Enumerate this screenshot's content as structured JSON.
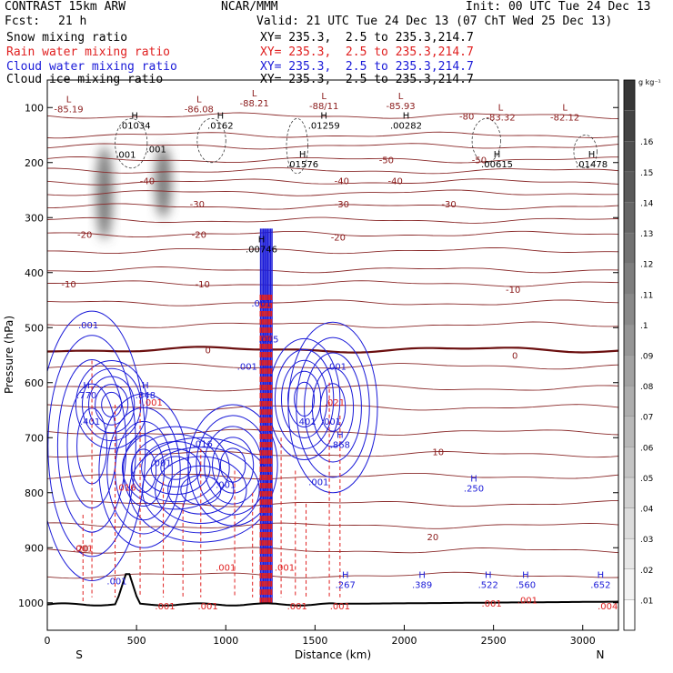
{
  "header": {
    "model": "CONTRAST 15km ARW",
    "org": "NCAR/MMM",
    "init": "Init: 00 UTC Tue 24 Dec 13",
    "fcst_label": "Fcst:",
    "fcst_value": "21 h",
    "valid": "Valid: 21 UTC Tue 24 Dec 13 (07 ChT Wed 25 Dec 13)"
  },
  "fields": [
    {
      "name": "Snow mixing ratio",
      "xy": "XY= 235.3,  2.5 to 235.3,214.7",
      "color": "#000000"
    },
    {
      "name": "Rain water mixing ratio",
      "xy": "XY= 235.3,  2.5 to 235.3,214.7",
      "color": "#e02020"
    },
    {
      "name": "Cloud water mixing ratio",
      "xy": "XY= 235.3,  2.5 to 235.3,214.7",
      "color": "#1a1ad8"
    },
    {
      "name": "Cloud ice mixing ratio",
      "xy": "XY= 235.3,  2.5 to 235.3,214.7",
      "color": "#000000"
    }
  ],
  "chart_data": {
    "type": "heatmap",
    "xlabel": "Distance (km)",
    "ylabel": "Pressure (hPa)",
    "xlim": [
      0,
      3200
    ],
    "ylim": [
      1050,
      50
    ],
    "x_ticks": [
      0,
      500,
      1000,
      1500,
      2000,
      2500,
      3000
    ],
    "y_ticks": [
      100,
      200,
      300,
      400,
      500,
      600,
      700,
      800,
      900,
      1000
    ],
    "endpoints": {
      "start": "S",
      "end": "N"
    },
    "colorbar": {
      "unit": "g kg⁻¹",
      "ticks": [
        ".01",
        ".02",
        ".03",
        ".04",
        ".05",
        ".06",
        ".07",
        ".08",
        ".09",
        ".1",
        ".11",
        ".12",
        ".13",
        ".14",
        ".15",
        ".16"
      ],
      "values": [
        0.01,
        0.02,
        0.03,
        0.04,
        0.05,
        0.06,
        0.07,
        0.08,
        0.09,
        0.1,
        0.11,
        0.12,
        0.13,
        0.14,
        0.15,
        0.16
      ]
    },
    "temperature_labels": [
      {
        "text": "-80",
        "x": 2350,
        "p": 115
      },
      {
        "text": "-50",
        "x": 1900,
        "p": 195
      },
      {
        "text": "-50",
        "x": 2420,
        "p": 195
      },
      {
        "text": "-40",
        "x": 560,
        "p": 233
      },
      {
        "text": "-40",
        "x": 1650,
        "p": 233
      },
      {
        "text": "-40",
        "x": 1950,
        "p": 233
      },
      {
        "text": "-30",
        "x": 840,
        "p": 275
      },
      {
        "text": "-30",
        "x": 1650,
        "p": 275
      },
      {
        "text": "-30",
        "x": 2250,
        "p": 275
      },
      {
        "text": "-20",
        "x": 210,
        "p": 330
      },
      {
        "text": "-20",
        "x": 850,
        "p": 330
      },
      {
        "text": "-20",
        "x": 1630,
        "p": 335
      },
      {
        "text": "-10",
        "x": 120,
        "p": 420
      },
      {
        "text": "-10",
        "x": 870,
        "p": 420
      },
      {
        "text": "-10",
        "x": 2610,
        "p": 430
      },
      {
        "text": "0",
        "x": 900,
        "p": 540
      },
      {
        "text": "0",
        "x": 2620,
        "p": 550
      },
      {
        "text": "10",
        "x": 2190,
        "p": 725
      },
      {
        "text": "20",
        "x": 200,
        "p": 900
      },
      {
        "text": "20",
        "x": 2160,
        "p": 880
      }
    ],
    "extrema": [
      {
        "type": "L",
        "value": "-85.19",
        "x": 120,
        "p": 100
      },
      {
        "type": "H",
        "value": ".01034",
        "x": 490,
        "p": 130
      },
      {
        "type": "L",
        "value": "-86.08",
        "x": 850,
        "p": 100
      },
      {
        "type": "L",
        "value": "-88.21",
        "x": 1160,
        "p": 90
      },
      {
        "type": "L",
        "value": "-88/11",
        "x": 1550,
        "p": 95
      },
      {
        "type": "L",
        "value": "-85.93",
        "x": 1980,
        "p": 95
      },
      {
        "type": "L",
        "value": "-83.32",
        "x": 2540,
        "p": 115
      },
      {
        "type": "L",
        "value": "-82.12",
        "x": 2900,
        "p": 115
      },
      {
        "type": "H",
        "value": ".0162",
        "x": 970,
        "p": 130
      },
      {
        "type": "H",
        "value": ".01259",
        "x": 1550,
        "p": 130
      },
      {
        "type": "H",
        "value": ".00282",
        "x": 2010,
        "p": 130
      },
      {
        "type": "H",
        "value": ".01576",
        "x": 1430,
        "p": 200
      },
      {
        "type": "H",
        "value": ".00615",
        "x": 2520,
        "p": 200
      },
      {
        "type": "H",
        "value": ".01478",
        "x": 3050,
        "p": 200
      },
      {
        "type": "H",
        "value": ".00746",
        "x": 1200,
        "p": 355
      },
      {
        "type": "H",
        "value": ".770",
        "x": 220,
        "p": 620
      },
      {
        "type": "H",
        "value": ".848",
        "x": 550,
        "p": 620
      },
      {
        "type": "H",
        "value": ".868",
        "x": 1640,
        "p": 710
      },
      {
        "type": "H",
        "value": ".250",
        "x": 2390,
        "p": 790
      },
      {
        "type": "H",
        "value": ".267",
        "x": 1670,
        "p": 965
      },
      {
        "type": "H",
        "value": ".389",
        "x": 2100,
        "p": 965
      },
      {
        "type": "H",
        "value": ".522",
        "x": 2470,
        "p": 965
      },
      {
        "type": "H",
        "value": ".560",
        "x": 2680,
        "p": 965
      },
      {
        "type": "H",
        "value": ".652",
        "x": 3100,
        "p": 965
      }
    ],
    "cloud_value_labels": [
      {
        "text": ".001",
        "x": 440,
        "p": 185
      },
      {
        "text": ".001",
        "x": 610,
        "p": 175
      },
      {
        "text": ".001",
        "x": 230,
        "p": 495
      },
      {
        "text": ".001",
        "x": 1200,
        "p": 455
      },
      {
        "text": ".001",
        "x": 1120,
        "p": 570
      },
      {
        "text": ".001",
        "x": 1620,
        "p": 570
      },
      {
        "text": ".001",
        "x": 640,
        "p": 745
      },
      {
        "text": ".001",
        "x": 1520,
        "p": 780
      },
      {
        "text": ".001",
        "x": 1000,
        "p": 785
      },
      {
        "text": ".001",
        "x": 390,
        "p": 960
      },
      {
        "text": ".401",
        "x": 240,
        "p": 670
      },
      {
        "text": ".401",
        "x": 1450,
        "p": 670
      },
      {
        "text": ".001",
        "x": 1590,
        "p": 670
      },
      {
        "text": ".016",
        "x": 870,
        "p": 710
      },
      {
        "text": ".005",
        "x": 1240,
        "p": 520
      }
    ],
    "rain_value_labels": [
      {
        "text": ".001",
        "x": 590,
        "p": 635
      },
      {
        "text": ".021",
        "x": 1610,
        "p": 635
      },
      {
        "text": ".016",
        "x": 440,
        "p": 790
      },
      {
        "text": ".001",
        "x": 1000,
        "p": 935
      },
      {
        "text": ".001",
        "x": 1330,
        "p": 935
      },
      {
        "text": ".001",
        "x": 200,
        "p": 900
      },
      {
        "text": ".001",
        "x": 660,
        "p": 1005
      },
      {
        "text": ".001",
        "x": 900,
        "p": 1005
      },
      {
        "text": ".001",
        "x": 1400,
        "p": 1005
      },
      {
        "text": ".001",
        "x": 1640,
        "p": 1005
      },
      {
        "text": ".001",
        "x": 2490,
        "p": 1000
      },
      {
        "text": ".001",
        "x": 2690,
        "p": 995
      },
      {
        "text": ".004",
        "x": 3140,
        "p": 1005
      }
    ],
    "rain_columns": [
      {
        "x": 200,
        "p_top": 840,
        "p_bottom": 1000
      },
      {
        "x": 250,
        "p_top": 560,
        "p_bottom": 990
      },
      {
        "x": 380,
        "p_top": 640,
        "p_bottom": 990
      },
      {
        "x": 520,
        "p_top": 620,
        "p_bottom": 990
      },
      {
        "x": 650,
        "p_top": 780,
        "p_bottom": 990
      },
      {
        "x": 760,
        "p_top": 820,
        "p_bottom": 990
      },
      {
        "x": 860,
        "p_top": 720,
        "p_bottom": 990
      },
      {
        "x": 1050,
        "p_top": 760,
        "p_bottom": 990
      },
      {
        "x": 1150,
        "p_top": 800,
        "p_bottom": 990
      },
      {
        "x": 1310,
        "p_top": 700,
        "p_bottom": 990
      },
      {
        "x": 1390,
        "p_top": 760,
        "p_bottom": 990
      },
      {
        "x": 1450,
        "p_top": 820,
        "p_bottom": 990
      },
      {
        "x": 1580,
        "p_top": 600,
        "p_bottom": 990
      },
      {
        "x": 1640,
        "p_top": 660,
        "p_bottom": 990
      }
    ],
    "strong_rain_shaft": {
      "x_from": 1195,
      "x_to": 1260,
      "p_top": 440,
      "p_bottom": 1005
    },
    "strong_cloud_shaft": {
      "x_from": 1195,
      "x_to": 1260,
      "p_top": 320,
      "p_bottom": 1000
    },
    "cloud_cells": [
      {
        "x": 250,
        "p_top": 470,
        "p_bottom": 960,
        "w": 60
      },
      {
        "x": 360,
        "p_top": 560,
        "p_bottom": 720,
        "w": 40
      },
      {
        "x": 540,
        "p_top": 620,
        "p_bottom": 900,
        "w": 50
      },
      {
        "x": 720,
        "p_top": 680,
        "p_bottom": 830,
        "w": 60
      },
      {
        "x": 860,
        "p_top": 700,
        "p_bottom": 890,
        "w": 80
      },
      {
        "x": 1040,
        "p_top": 640,
        "p_bottom": 860,
        "w": 50
      },
      {
        "x": 1440,
        "p_top": 520,
        "p_bottom": 740,
        "w": 40
      },
      {
        "x": 1600,
        "p_top": 490,
        "p_bottom": 800,
        "w": 50
      }
    ],
    "snow_plumes": [
      {
        "x": 320,
        "p_top": 170,
        "p_bottom": 340,
        "intensity": 0.12
      },
      {
        "x": 650,
        "p_top": 170,
        "p_bottom": 300,
        "intensity": 0.1
      }
    ],
    "isotherm_pressures": [
      115,
      150,
      170,
      195,
      215,
      235,
      255,
      280,
      305,
      330,
      360,
      395,
      420,
      455,
      495,
      540,
      570,
      610,
      645,
      690,
      730,
      770,
      820,
      860,
      905,
      950
    ]
  }
}
